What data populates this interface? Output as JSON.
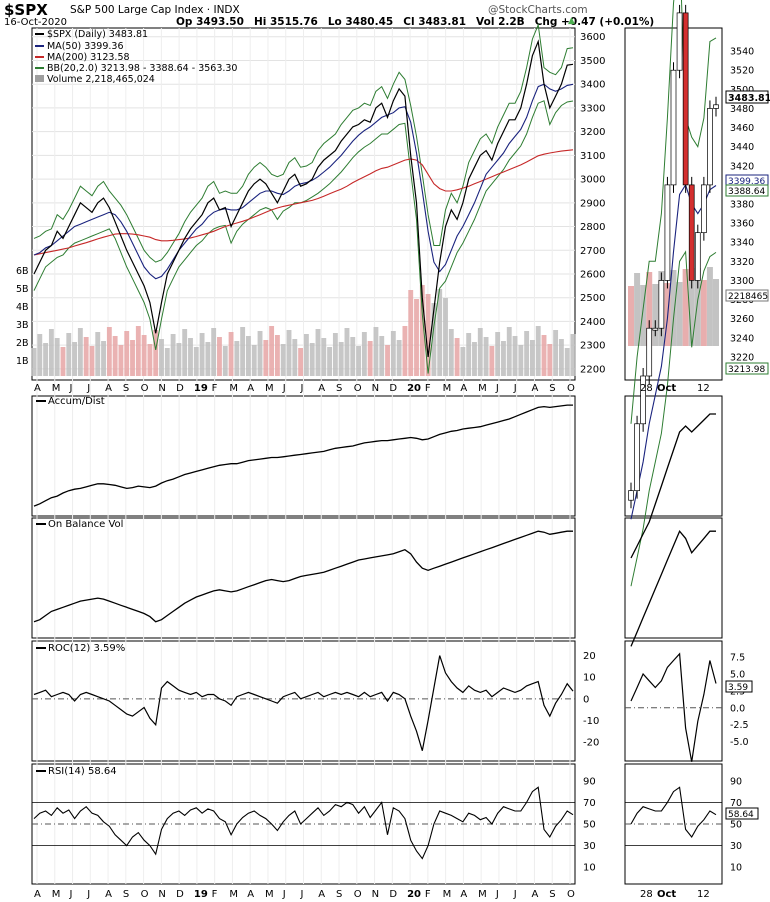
{
  "header": {
    "symbol": "$SPX",
    "name": "S&P 500 Large Cap Index",
    "exchange": "INDX",
    "date": "16-Oct-2020",
    "open": "Op 3493.50",
    "high": "Hi 3515.76",
    "low": "Lo 3480.45",
    "close": "Cl 3483.81",
    "volume": "Vol 2.2B",
    "change": "Chg +0.47 (+0.01%)",
    "watermark": "@StockCharts.com",
    "watermark_arrow": "▲"
  },
  "legend": {
    "main": "$SPX (Daily) 3483.81",
    "ma50": "MA(50) 3399.36",
    "ma200": "MA(200) 3123.58",
    "bb": "BB(20,2.0) 3213.98 - 3388.64 - 3563.30",
    "volume": "Volume 2,218,465,024"
  },
  "colors": {
    "ma50": "#1a237e",
    "ma200": "#c62828",
    "bb": "#2e7d32",
    "price": "#000000",
    "vol_up": "#bdbdbd",
    "vol_down": "#e6a5a5"
  },
  "panels": {
    "ad_title": "Accum/Dist",
    "obv_title": "On Balance Vol",
    "roc_title": "ROC(12) 3.59%",
    "rsi_title": "RSI(14) 58.64"
  },
  "last_labels": {
    "price": "3483.81",
    "ma50": "3399.36",
    "bb_mid": "3388.64",
    "bb_low": "3213.98",
    "vol": "2218465",
    "roc": "3.59",
    "rsi": "58.64"
  },
  "x_axis_labels": [
    "A",
    "M",
    "J",
    "J",
    "A",
    "S",
    "O",
    "N",
    "D",
    "19",
    "F",
    "M",
    "A",
    "M",
    "J",
    "J",
    "A",
    "S",
    "O",
    "N",
    "D",
    "20",
    "F",
    "M",
    "A",
    "M",
    "J",
    "J",
    "A",
    "S",
    "O"
  ],
  "zoom_x_labels": [
    "28",
    "Oct",
    "12"
  ],
  "chart_data": [
    {
      "type": "line",
      "title": "$SPX (Daily) 3483.81",
      "x_labels": [
        "A",
        "M",
        "J",
        "J",
        "A",
        "S",
        "O",
        "N",
        "D",
        "19",
        "F",
        "M",
        "A",
        "M",
        "J",
        "J",
        "A",
        "S",
        "O",
        "N",
        "D",
        "20",
        "F",
        "M",
        "A",
        "M",
        "J",
        "J",
        "A",
        "S",
        "O"
      ],
      "y_ticks": [
        2200,
        2300,
        2400,
        2500,
        2600,
        2700,
        2800,
        2900,
        3000,
        3100,
        3200,
        3300,
        3400,
        3500,
        3600
      ],
      "ylim": [
        2170,
        3620
      ],
      "series": [
        {
          "name": "$SPX (Daily)",
          "values": [
            2600,
            2650,
            2700,
            2720,
            2780,
            2750,
            2800,
            2850,
            2900,
            2880,
            2860,
            2900,
            2920,
            2880,
            2820,
            2760,
            2700,
            2650,
            2600,
            2550,
            2480,
            2350,
            2480,
            2600,
            2650,
            2700,
            2750,
            2790,
            2820,
            2850,
            2900,
            2920,
            2870,
            2880,
            2800,
            2850,
            2900,
            2950,
            2980,
            3000,
            2980,
            2940,
            2900,
            2950,
            3000,
            3020,
            2970,
            2980,
            3000,
            3050,
            3080,
            3100,
            3120,
            3160,
            3190,
            3220,
            3230,
            3250,
            3240,
            3300,
            3320,
            3260,
            3330,
            3380,
            3350,
            3100,
            2900,
            2500,
            2250,
            2450,
            2650,
            2800,
            2870,
            2830,
            2900,
            3000,
            3050,
            3100,
            3120,
            3080,
            3150,
            3200,
            3250,
            3250,
            3300,
            3400,
            3520,
            3580,
            3400,
            3300,
            3350,
            3400,
            3480,
            3483.81
          ]
        },
        {
          "name": "MA(50)",
          "values": [
            2680,
            2690,
            2710,
            2720,
            2740,
            2760,
            2780,
            2800,
            2810,
            2820,
            2830,
            2840,
            2850,
            2860,
            2850,
            2820,
            2780,
            2730,
            2680,
            2630,
            2600,
            2580,
            2590,
            2620,
            2660,
            2700,
            2730,
            2760,
            2790,
            2810,
            2840,
            2860,
            2870,
            2875,
            2870,
            2870,
            2880,
            2900,
            2920,
            2940,
            2950,
            2950,
            2940,
            2935,
            2950,
            2970,
            2980,
            2985,
            2995,
            3010,
            3030,
            3050,
            3075,
            3100,
            3130,
            3160,
            3185,
            3205,
            3220,
            3240,
            3260,
            3270,
            3280,
            3300,
            3305,
            3240,
            3110,
            2950,
            2780,
            2650,
            2610,
            2640,
            2700,
            2760,
            2800,
            2850,
            2900,
            2960,
            3020,
            3050,
            3080,
            3110,
            3150,
            3180,
            3210,
            3260,
            3330,
            3390,
            3400,
            3380,
            3370,
            3380,
            3395,
            3399.36
          ]
        },
        {
          "name": "MA(200)",
          "values": [
            2680,
            2685,
            2690,
            2695,
            2700,
            2705,
            2710,
            2718,
            2725,
            2732,
            2740,
            2748,
            2755,
            2762,
            2768,
            2770,
            2770,
            2768,
            2765,
            2760,
            2755,
            2745,
            2740,
            2740,
            2742,
            2745,
            2748,
            2752,
            2758,
            2765,
            2772,
            2780,
            2790,
            2800,
            2808,
            2815,
            2822,
            2830,
            2840,
            2850,
            2860,
            2870,
            2878,
            2885,
            2890,
            2895,
            2900,
            2905,
            2910,
            2918,
            2928,
            2938,
            2948,
            2958,
            2970,
            2985,
            2998,
            3010,
            3022,
            3035,
            3045,
            3050,
            3060,
            3070,
            3080,
            3085,
            3080,
            3060,
            3020,
            2980,
            2960,
            2950,
            2950,
            2955,
            2962,
            2970,
            2980,
            2990,
            3000,
            3010,
            3020,
            3030,
            3040,
            3050,
            3060,
            3072,
            3085,
            3098,
            3105,
            3110,
            3114,
            3118,
            3121,
            3123.58
          ]
        }
      ]
    },
    {
      "type": "line",
      "title": "Accum/Dist",
      "series": [
        {
          "name": "Accum/Dist",
          "values": [
            5,
            8,
            12,
            16,
            18,
            22,
            25,
            27,
            28,
            30,
            32,
            34,
            34,
            33,
            32,
            30,
            28,
            29,
            31,
            30,
            29,
            31,
            35,
            38,
            40,
            43,
            46,
            48,
            50,
            52,
            54,
            56,
            58,
            59,
            60,
            60,
            62,
            64,
            65,
            66,
            67,
            68,
            68,
            69,
            70,
            71,
            72,
            73,
            74,
            75,
            76,
            78,
            80,
            81,
            82,
            83,
            85,
            87,
            88,
            89,
            90,
            90,
            91,
            92,
            93,
            94,
            93,
            91,
            92,
            95,
            98,
            100,
            102,
            103,
            105,
            106,
            107,
            108,
            110,
            112,
            114,
            116,
            118,
            121,
            124,
            127,
            130,
            133,
            134,
            133,
            134,
            135,
            136,
            136
          ]
        }
      ]
    },
    {
      "type": "line",
      "title": "On Balance Vol",
      "series": [
        {
          "name": "On Balance Vol",
          "values": [
            10,
            12,
            16,
            20,
            22,
            24,
            26,
            28,
            30,
            31,
            32,
            33,
            32,
            30,
            28,
            26,
            24,
            22,
            20,
            18,
            15,
            10,
            12,
            16,
            20,
            24,
            28,
            31,
            34,
            36,
            38,
            40,
            41,
            40,
            39,
            40,
            42,
            44,
            46,
            48,
            50,
            51,
            50,
            49,
            50,
            52,
            54,
            55,
            56,
            57,
            58,
            60,
            62,
            64,
            66,
            68,
            70,
            71,
            72,
            73,
            74,
            75,
            76,
            78,
            80,
            76,
            68,
            62,
            60,
            62,
            64,
            66,
            68,
            70,
            72,
            74,
            76,
            78,
            80,
            82,
            84,
            86,
            88,
            90,
            92,
            94,
            96,
            98,
            97,
            95,
            96,
            97,
            98,
            98
          ]
        }
      ]
    },
    {
      "type": "line",
      "title": "ROC(12) 3.59%",
      "y_ticks": [
        -20,
        -10,
        0,
        10,
        20
      ],
      "ylim": [
        -26,
        24
      ],
      "series": [
        {
          "name": "ROC(12)",
          "values": [
            2,
            3,
            4,
            1,
            2,
            3,
            2,
            -1,
            2,
            3,
            2,
            1,
            0,
            -1,
            -3,
            -5,
            -7,
            -8,
            -6,
            -4,
            -9,
            -12,
            5,
            8,
            6,
            4,
            3,
            2,
            3,
            1,
            2,
            2,
            0,
            -1,
            -3,
            1,
            2,
            3,
            2,
            1,
            0,
            -1,
            -2,
            1,
            2,
            3,
            0,
            1,
            2,
            3,
            1,
            2,
            3,
            2,
            3,
            2,
            1,
            3,
            1,
            2,
            3,
            -1,
            3,
            2,
            0,
            -8,
            -15,
            -24,
            -10,
            5,
            20,
            12,
            8,
            5,
            3,
            6,
            4,
            3,
            4,
            1,
            3,
            5,
            4,
            3,
            4,
            6,
            7,
            8,
            -3,
            -8,
            -2,
            2,
            7,
            3.59
          ]
        }
      ]
    },
    {
      "type": "line",
      "title": "RSI(14) 58.64",
      "y_ticks": [
        10,
        30,
        50,
        70,
        90
      ],
      "ylim": [
        0,
        100
      ],
      "series": [
        {
          "name": "RSI(14)",
          "values": [
            55,
            60,
            62,
            58,
            65,
            60,
            63,
            55,
            62,
            66,
            60,
            58,
            52,
            48,
            40,
            35,
            30,
            38,
            42,
            35,
            30,
            22,
            45,
            55,
            60,
            62,
            58,
            63,
            65,
            60,
            64,
            62,
            55,
            52,
            40,
            50,
            56,
            60,
            62,
            58,
            55,
            50,
            44,
            52,
            58,
            62,
            50,
            55,
            60,
            65,
            58,
            62,
            68,
            66,
            70,
            68,
            60,
            66,
            56,
            63,
            70,
            40,
            65,
            62,
            55,
            35,
            25,
            18,
            30,
            50,
            62,
            60,
            58,
            55,
            52,
            60,
            58,
            54,
            56,
            50,
            60,
            66,
            64,
            62,
            62,
            70,
            80,
            84,
            45,
            38,
            48,
            54,
            62,
            58.64
          ]
        }
      ]
    }
  ]
}
